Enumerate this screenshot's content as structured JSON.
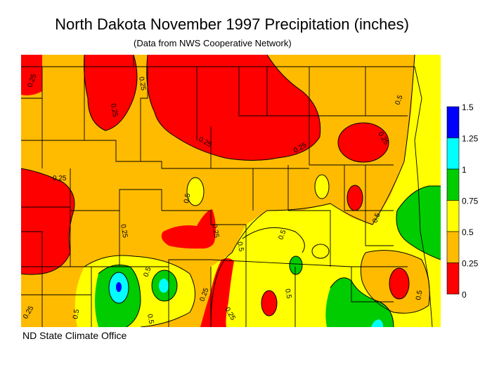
{
  "title": "North Dakota November 1997 Precipitation (inches)",
  "subtitle": "(Data from NWS Cooperative Network)",
  "footer": "ND State Climate Office",
  "legend": {
    "labels": [
      "1.5",
      "1.25",
      "1",
      "0.75",
      "0.5",
      "0.25",
      "0"
    ],
    "bands": [
      {
        "from": 1.25,
        "to": 1.5,
        "color": "#0000ff"
      },
      {
        "from": 1.0,
        "to": 1.25,
        "color": "#00ffff"
      },
      {
        "from": 0.75,
        "to": 1.0,
        "color": "#00cc00"
      },
      {
        "from": 0.5,
        "to": 0.75,
        "color": "#ffff00"
      },
      {
        "from": 0.25,
        "to": 0.5,
        "color": "#ffbb00"
      },
      {
        "from": 0.0,
        "to": 0.25,
        "color": "#ff0000"
      }
    ]
  },
  "contour_labels": [
    "0.25",
    "0.5"
  ]
}
